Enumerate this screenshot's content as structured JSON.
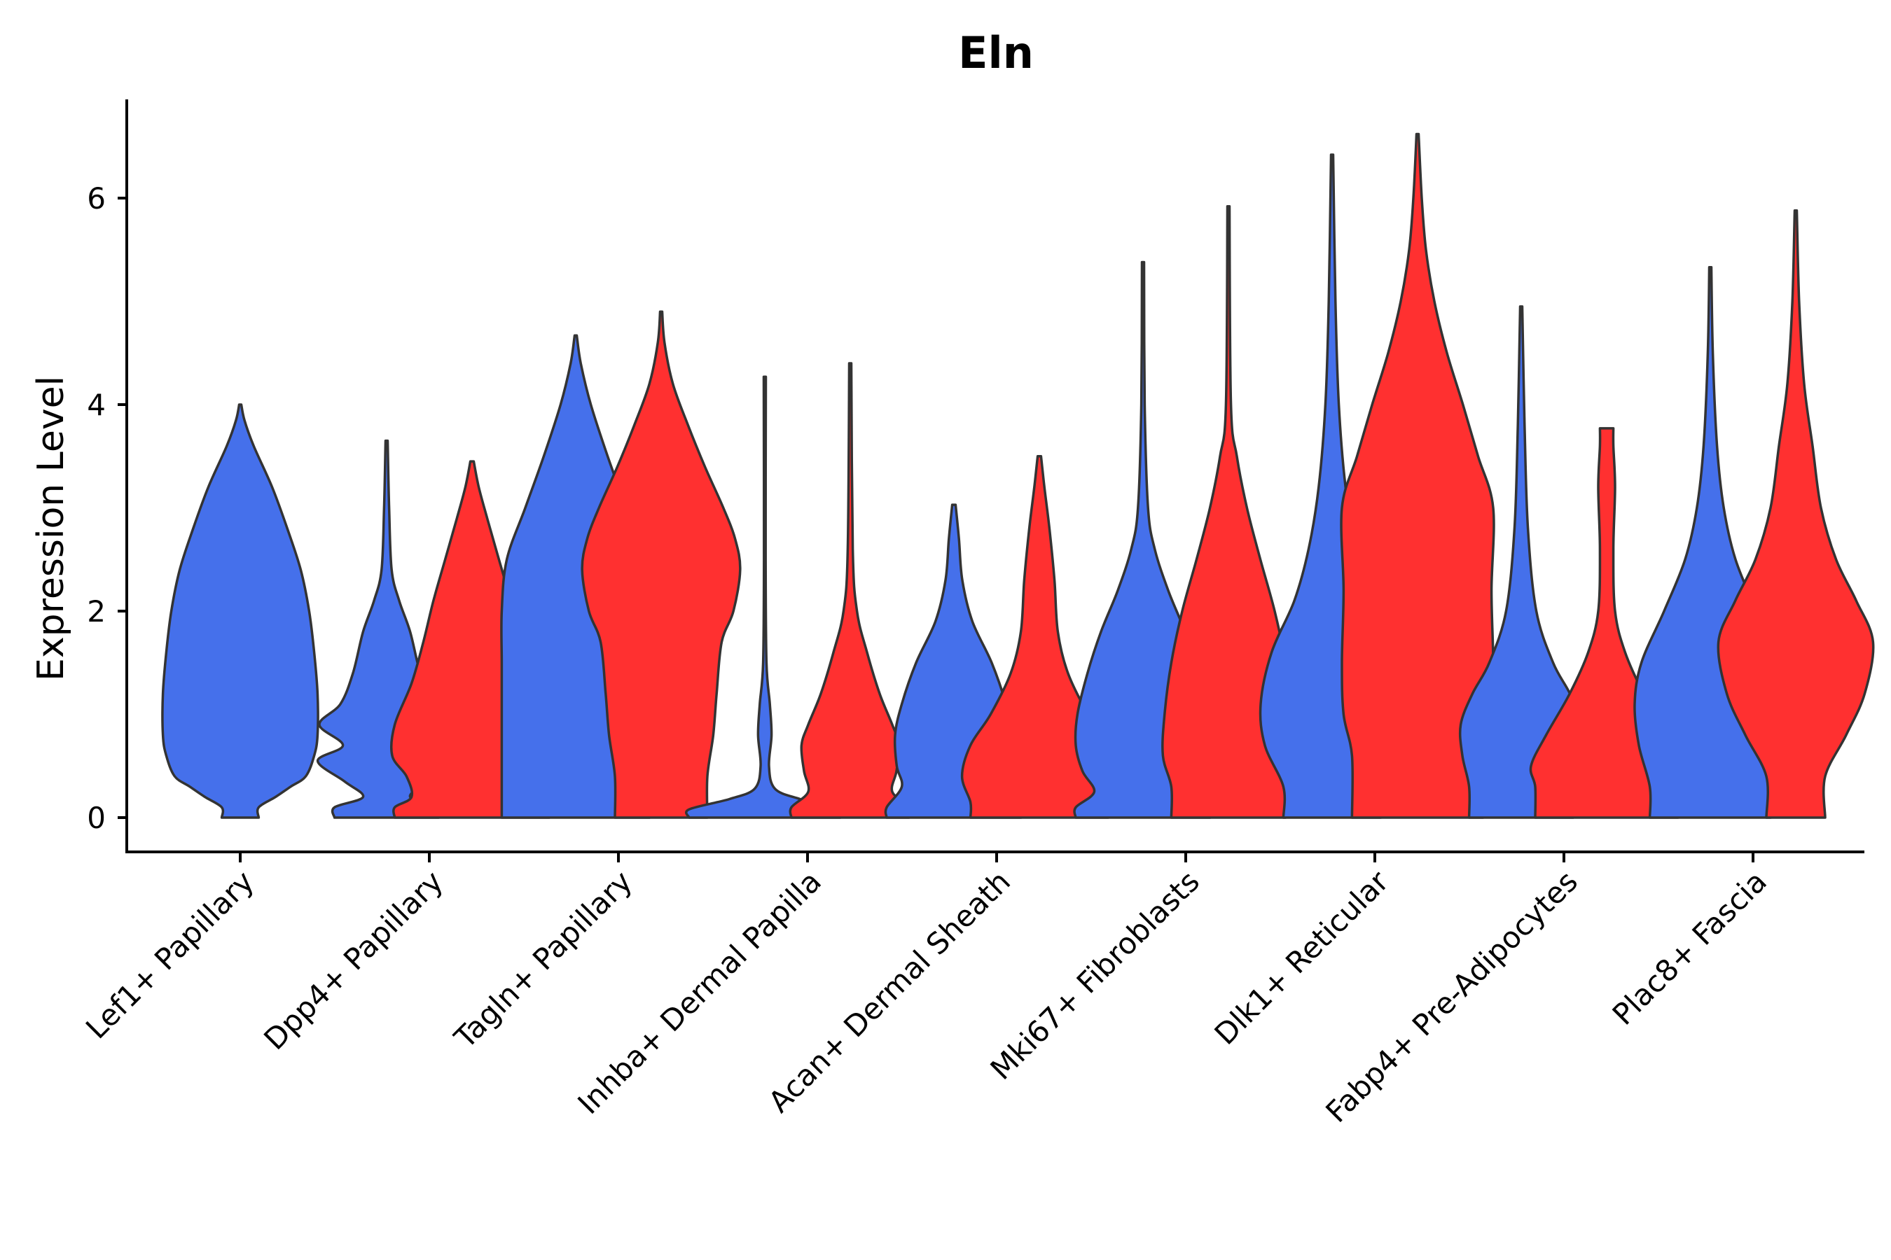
{
  "chart_data": {
    "type": "violin",
    "title": "Eln",
    "xlabel": "",
    "ylabel": "Expression Level",
    "ylim": [
      -0.33,
      6.95
    ],
    "yticks": [
      0,
      2,
      4,
      6
    ],
    "categories": [
      "Lef1+ Papillary",
      "Dpp4+ Papillary",
      "Tagln+ Papillary",
      "Inhba+ Dermal Papilla",
      "Acan+ Dermal Sheath",
      "Mki67+ Fibroblasts",
      "Dlk1+ Reticular",
      "Fabp4+ Pre-Adipocytes",
      "Plac8+ Fascia"
    ],
    "groups": [
      {
        "name": "group-blue",
        "color": "#4570EB"
      },
      {
        "name": "group-red",
        "color": "#FF3030"
      }
    ],
    "violins": [
      {
        "category": "Lef1+ Papillary",
        "group": 0,
        "ymax": 4.0,
        "profile": [
          [
            0,
            0.0
          ],
          [
            0.1,
            0.22
          ],
          [
            0.2,
            0.42
          ],
          [
            0.3,
            0.6
          ],
          [
            0.4,
            0.78
          ],
          [
            0.6,
            0.88
          ],
          [
            0.8,
            0.92
          ],
          [
            1.2,
            0.92
          ],
          [
            1.6,
            0.88
          ],
          [
            2.0,
            0.82
          ],
          [
            2.4,
            0.72
          ],
          [
            2.8,
            0.56
          ],
          [
            3.2,
            0.38
          ],
          [
            3.6,
            0.16
          ],
          [
            3.85,
            0.05
          ],
          [
            4.0,
            0.01
          ]
        ]
      },
      {
        "category": "Dpp4+ Papillary",
        "group": 0,
        "ymax": 3.65,
        "profile": [
          [
            0,
            0.0
          ],
          [
            0.1,
            0.62
          ],
          [
            0.2,
            0.28
          ],
          [
            0.35,
            0.5
          ],
          [
            0.55,
            0.82
          ],
          [
            0.7,
            0.52
          ],
          [
            0.9,
            0.8
          ],
          [
            1.1,
            0.55
          ],
          [
            1.4,
            0.4
          ],
          [
            1.8,
            0.28
          ],
          [
            2.1,
            0.15
          ],
          [
            2.4,
            0.06
          ],
          [
            3.0,
            0.03
          ],
          [
            3.65,
            0.01
          ]
        ]
      },
      {
        "category": "Dpp4+ Papillary",
        "group": 1,
        "ymax": 3.45,
        "profile": [
          [
            0,
            0.0
          ],
          [
            0.1,
            0.92
          ],
          [
            0.2,
            0.72
          ],
          [
            0.4,
            0.78
          ],
          [
            0.6,
            0.95
          ],
          [
            0.9,
            0.92
          ],
          [
            1.3,
            0.72
          ],
          [
            1.7,
            0.58
          ],
          [
            2.1,
            0.46
          ],
          [
            2.5,
            0.32
          ],
          [
            2.9,
            0.18
          ],
          [
            3.2,
            0.08
          ],
          [
            3.45,
            0.02
          ]
        ]
      },
      {
        "category": "Tagln+ Papillary",
        "group": 0,
        "ymax": 4.67,
        "profile": [
          [
            0,
            0.0
          ],
          [
            0.5,
            0.88
          ],
          [
            1.0,
            0.88
          ],
          [
            1.5,
            0.88
          ],
          [
            2.0,
            0.88
          ],
          [
            2.5,
            0.82
          ],
          [
            3.0,
            0.6
          ],
          [
            3.5,
            0.38
          ],
          [
            4.0,
            0.18
          ],
          [
            4.4,
            0.06
          ],
          [
            4.67,
            0.01
          ]
        ]
      },
      {
        "category": "Tagln+ Papillary",
        "group": 1,
        "ymax": 4.9,
        "profile": [
          [
            0,
            0.0
          ],
          [
            0.4,
            0.55
          ],
          [
            0.8,
            0.62
          ],
          [
            1.2,
            0.66
          ],
          [
            1.7,
            0.72
          ],
          [
            2.0,
            0.86
          ],
          [
            2.4,
            0.94
          ],
          [
            2.7,
            0.88
          ],
          [
            3.0,
            0.74
          ],
          [
            3.4,
            0.52
          ],
          [
            3.8,
            0.32
          ],
          [
            4.2,
            0.14
          ],
          [
            4.6,
            0.04
          ],
          [
            4.9,
            0.01
          ]
        ]
      },
      {
        "category": "Inhba+ Dermal Papilla",
        "group": 0,
        "ymax": 4.27,
        "profile": [
          [
            0,
            0.0
          ],
          [
            0.08,
            0.9
          ],
          [
            0.18,
            0.42
          ],
          [
            0.28,
            0.12
          ],
          [
            0.5,
            0.05
          ],
          [
            0.8,
            0.08
          ],
          [
            1.1,
            0.06
          ],
          [
            1.5,
            0.02
          ],
          [
            2.5,
            0.01
          ],
          [
            4.27,
            0.005
          ]
        ]
      },
      {
        "category": "Inhba+ Dermal Papilla",
        "group": 1,
        "ymax": 4.4,
        "profile": [
          [
            0,
            0.0
          ],
          [
            0.1,
            0.7
          ],
          [
            0.25,
            0.5
          ],
          [
            0.45,
            0.55
          ],
          [
            0.7,
            0.58
          ],
          [
            0.9,
            0.5
          ],
          [
            1.2,
            0.35
          ],
          [
            1.6,
            0.2
          ],
          [
            2.0,
            0.08
          ],
          [
            2.6,
            0.03
          ],
          [
            4.4,
            0.005
          ]
        ]
      },
      {
        "category": "Acan+ Dermal Sheath",
        "group": 0,
        "ymax": 3.03,
        "profile": [
          [
            0,
            0.0
          ],
          [
            0.1,
            0.8
          ],
          [
            0.3,
            0.62
          ],
          [
            0.5,
            0.68
          ],
          [
            0.8,
            0.7
          ],
          [
            1.1,
            0.62
          ],
          [
            1.5,
            0.45
          ],
          [
            1.9,
            0.22
          ],
          [
            2.3,
            0.1
          ],
          [
            2.7,
            0.06
          ],
          [
            3.03,
            0.02
          ]
        ]
      },
      {
        "category": "Acan+ Dermal Sheath",
        "group": 1,
        "ymax": 3.5,
        "profile": [
          [
            0,
            0.0
          ],
          [
            0.15,
            0.82
          ],
          [
            0.4,
            0.92
          ],
          [
            0.7,
            0.82
          ],
          [
            1.0,
            0.58
          ],
          [
            1.4,
            0.34
          ],
          [
            1.8,
            0.22
          ],
          [
            2.3,
            0.18
          ],
          [
            2.8,
            0.12
          ],
          [
            3.2,
            0.06
          ],
          [
            3.5,
            0.02
          ]
        ]
      },
      {
        "category": "Mki67+ Fibroblasts",
        "group": 0,
        "ymax": 5.38,
        "profile": [
          [
            0,
            0.0
          ],
          [
            0.1,
            0.8
          ],
          [
            0.25,
            0.58
          ],
          [
            0.45,
            0.72
          ],
          [
            0.7,
            0.8
          ],
          [
            1.0,
            0.78
          ],
          [
            1.4,
            0.66
          ],
          [
            1.8,
            0.5
          ],
          [
            2.2,
            0.3
          ],
          [
            2.6,
            0.14
          ],
          [
            3.0,
            0.06
          ],
          [
            4.0,
            0.02
          ],
          [
            5.38,
            0.005
          ]
        ]
      },
      {
        "category": "Mki67+ Fibroblasts",
        "group": 1,
        "ymax": 5.92,
        "profile": [
          [
            0,
            0.0
          ],
          [
            0.3,
            0.68
          ],
          [
            0.6,
            0.78
          ],
          [
            1.0,
            0.76
          ],
          [
            1.5,
            0.68
          ],
          [
            2.0,
            0.55
          ],
          [
            2.5,
            0.38
          ],
          [
            3.0,
            0.22
          ],
          [
            3.5,
            0.1
          ],
          [
            4.0,
            0.03
          ],
          [
            5.92,
            0.005
          ]
        ]
      },
      {
        "category": "Dlk1+ Reticular",
        "group": 0,
        "ymax": 6.42,
        "profile": [
          [
            0,
            0.0
          ],
          [
            0.3,
            0.58
          ],
          [
            0.7,
            0.8
          ],
          [
            1.1,
            0.85
          ],
          [
            1.6,
            0.72
          ],
          [
            2.1,
            0.45
          ],
          [
            2.6,
            0.28
          ],
          [
            3.2,
            0.16
          ],
          [
            4.0,
            0.08
          ],
          [
            5.0,
            0.04
          ],
          [
            6.42,
            0.005
          ]
        ]
      },
      {
        "category": "Dlk1+ Reticular",
        "group": 1,
        "ymax": 6.62,
        "profile": [
          [
            0,
            0.0
          ],
          [
            0.6,
            0.78
          ],
          [
            1.0,
            0.88
          ],
          [
            1.5,
            0.9
          ],
          [
            2.2,
            0.88
          ],
          [
            3.0,
            0.9
          ],
          [
            3.5,
            0.72
          ],
          [
            4.0,
            0.54
          ],
          [
            4.5,
            0.35
          ],
          [
            5.0,
            0.2
          ],
          [
            5.5,
            0.1
          ],
          [
            6.0,
            0.05
          ],
          [
            6.62,
            0.005
          ]
        ]
      },
      {
        "category": "Fabp4+ Pre-Adipocytes",
        "group": 0,
        "ymax": 4.95,
        "profile": [
          [
            0,
            0.0
          ],
          [
            0.3,
            0.62
          ],
          [
            0.6,
            0.7
          ],
          [
            0.9,
            0.72
          ],
          [
            1.2,
            0.58
          ],
          [
            1.5,
            0.38
          ],
          [
            2.0,
            0.18
          ],
          [
            2.8,
            0.08
          ],
          [
            3.8,
            0.04
          ],
          [
            4.95,
            0.005
          ]
        ]
      },
      {
        "category": "Fabp4+ Pre-Adipocytes",
        "group": 1,
        "ymax": 3.77,
        "profile": [
          [
            0,
            0.0
          ],
          [
            0.3,
            0.85
          ],
          [
            0.5,
            0.9
          ],
          [
            0.8,
            0.72
          ],
          [
            1.2,
            0.44
          ],
          [
            1.6,
            0.22
          ],
          [
            2.0,
            0.1
          ],
          [
            2.6,
            0.08
          ],
          [
            3.2,
            0.1
          ],
          [
            3.6,
            0.08
          ],
          [
            3.77,
            0.08
          ]
        ]
      },
      {
        "category": "Plac8+ Fascia",
        "group": 0,
        "ymax": 5.33,
        "profile": [
          [
            0,
            0.0
          ],
          [
            0.3,
            0.72
          ],
          [
            0.7,
            0.85
          ],
          [
            1.1,
            0.9
          ],
          [
            1.5,
            0.82
          ],
          [
            2.0,
            0.55
          ],
          [
            2.5,
            0.3
          ],
          [
            3.0,
            0.16
          ],
          [
            3.6,
            0.08
          ],
          [
            4.5,
            0.03
          ],
          [
            5.33,
            0.005
          ]
        ]
      },
      {
        "category": "Plac8+ Fascia",
        "group": 1,
        "ymax": 5.88,
        "profile": [
          [
            0,
            0.0
          ],
          [
            0.4,
            0.35
          ],
          [
            0.8,
            0.6
          ],
          [
            1.2,
            0.82
          ],
          [
            1.7,
            0.92
          ],
          [
            2.1,
            0.72
          ],
          [
            2.5,
            0.48
          ],
          [
            3.0,
            0.3
          ],
          [
            3.6,
            0.2
          ],
          [
            4.2,
            0.1
          ],
          [
            5.0,
            0.04
          ],
          [
            5.88,
            0.005
          ]
        ]
      }
    ]
  }
}
